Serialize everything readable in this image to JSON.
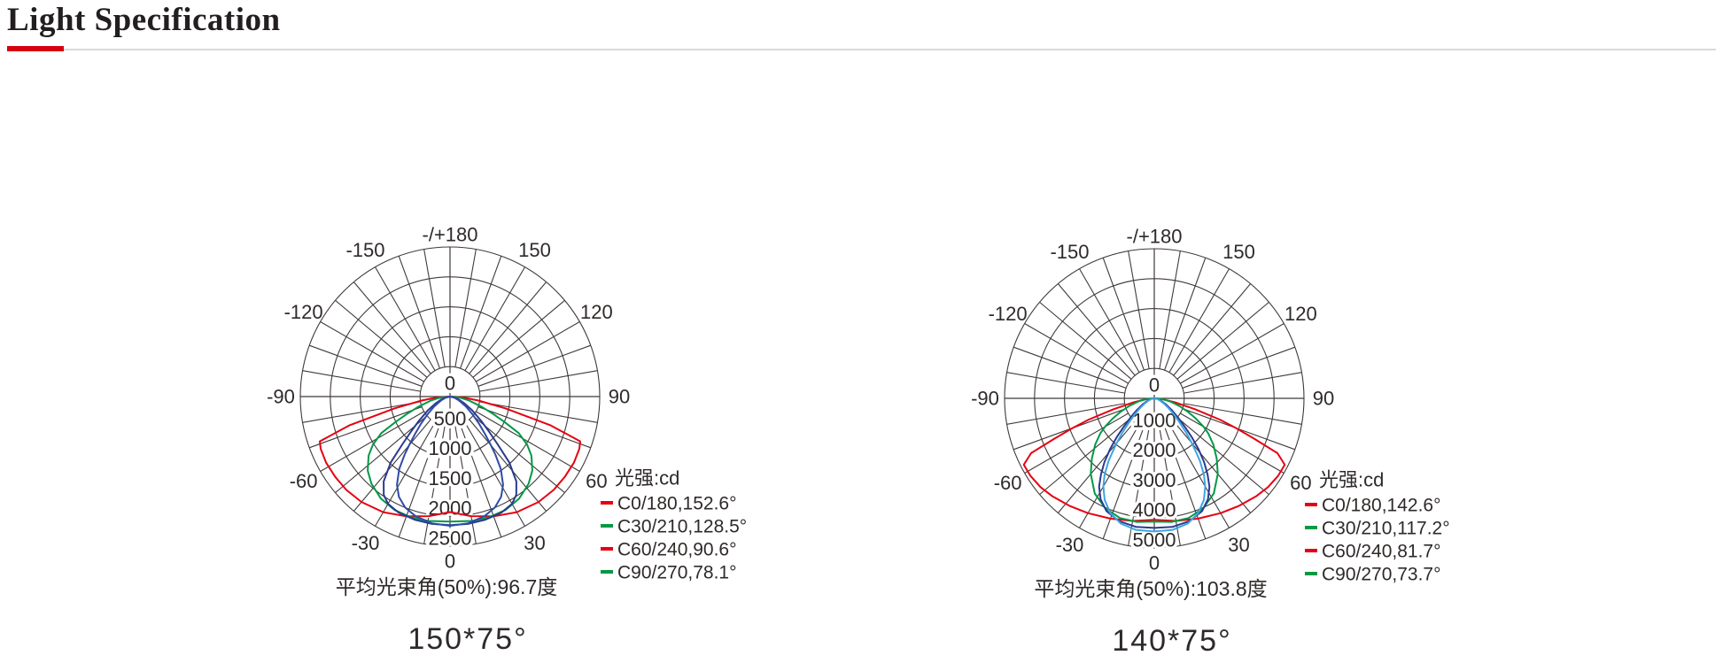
{
  "page": {
    "title": "Light Specification",
    "accent_color": "#d6000f",
    "divider_color": "#dadada",
    "text_color": "#2e2a29",
    "grid_color": "#3f3a39"
  },
  "chart_data": [
    {
      "type": "polar_photometric",
      "size_label": "150*75°",
      "caption": "平均光束角(50%):96.7度",
      "unit_label": "光强:cd",
      "r_max": 2500,
      "radial_ticks": [
        0,
        500,
        1000,
        1500,
        2000,
        2500
      ],
      "center_tick_label": "0",
      "bottom_angle_label": "0",
      "angle_labels": [
        {
          "angle": 180,
          "label": "-/+180"
        },
        {
          "angle": 150,
          "label": "150"
        },
        {
          "angle": -150,
          "label": "-150"
        },
        {
          "angle": 120,
          "label": "120"
        },
        {
          "angle": -120,
          "label": "-120"
        },
        {
          "angle": 90,
          "label": "90"
        },
        {
          "angle": -90,
          "label": "-90"
        },
        {
          "angle": 60,
          "label": "60"
        },
        {
          "angle": -60,
          "label": "-60"
        },
        {
          "angle": 30,
          "label": "30"
        },
        {
          "angle": -30,
          "label": "-30"
        }
      ],
      "series": [
        {
          "name": "C0/180,152.6°",
          "dash_color": "#e60012",
          "curve_color": "#e60012",
          "profile_cd_by_angle": [
            [
              0,
              1930
            ],
            [
              10,
              2030
            ],
            [
              20,
              2130
            ],
            [
              30,
              2230
            ],
            [
              40,
              2300
            ],
            [
              48,
              2330
            ],
            [
              55,
              2340
            ],
            [
              62,
              2345
            ],
            [
              68,
              2330
            ],
            [
              71,
              2300
            ],
            [
              74,
              1750
            ],
            [
              78,
              950
            ],
            [
              82,
              480
            ],
            [
              86,
              220
            ],
            [
              90,
              0
            ]
          ]
        },
        {
          "name": "C30/210,128.5°",
          "dash_color": "#009a44",
          "curve_color": "#009a44",
          "profile_cd_by_angle": [
            [
              0,
              2090
            ],
            [
              10,
              2110
            ],
            [
              18,
              2120
            ],
            [
              26,
              2110
            ],
            [
              34,
              2060
            ],
            [
              42,
              1960
            ],
            [
              48,
              1850
            ],
            [
              54,
              1680
            ],
            [
              58,
              1520
            ],
            [
              62,
              1300
            ],
            [
              65,
              1000
            ],
            [
              68,
              780
            ],
            [
              72,
              560
            ],
            [
              78,
              330
            ],
            [
              84,
              160
            ],
            [
              90,
              0
            ]
          ]
        },
        {
          "name": "C60/240,90.6°",
          "dash_color": "#e60012",
          "curve_color": "#2b3a8f",
          "profile_cd_by_angle": [
            [
              0,
              2150
            ],
            [
              8,
              2150
            ],
            [
              16,
              2140
            ],
            [
              24,
              2120
            ],
            [
              30,
              2070
            ],
            [
              34,
              1980
            ],
            [
              38,
              1800
            ],
            [
              42,
              1480
            ],
            [
              45,
              1120
            ],
            [
              48,
              880
            ],
            [
              52,
              660
            ],
            [
              58,
              440
            ],
            [
              65,
              260
            ],
            [
              72,
              150
            ],
            [
              80,
              70
            ],
            [
              90,
              0
            ]
          ]
        },
        {
          "name": "C90/270,78.1°",
          "dash_color": "#009a44",
          "curve_color": "#2f4ba6",
          "profile_cd_by_angle": [
            [
              0,
              2160
            ],
            [
              8,
              2140
            ],
            [
              16,
              2080
            ],
            [
              22,
              2000
            ],
            [
              27,
              1880
            ],
            [
              31,
              1720
            ],
            [
              35,
              1480
            ],
            [
              38,
              1230
            ],
            [
              40,
              1060
            ],
            [
              43,
              860
            ],
            [
              47,
              660
            ],
            [
              52,
              470
            ],
            [
              58,
              310
            ],
            [
              66,
              170
            ],
            [
              75,
              80
            ],
            [
              90,
              0
            ]
          ]
        }
      ]
    },
    {
      "type": "polar_photometric",
      "size_label": "140*75°",
      "caption": "平均光束角(50%):103.8度",
      "unit_label": "光强:cd",
      "r_max": 5000,
      "radial_ticks": [
        0,
        1000,
        2000,
        3000,
        4000,
        5000
      ],
      "center_tick_label": "0",
      "bottom_angle_label": "0",
      "angle_labels": [
        {
          "angle": 180,
          "label": "-/+180"
        },
        {
          "angle": 150,
          "label": "150"
        },
        {
          "angle": -150,
          "label": "-150"
        },
        {
          "angle": 120,
          "label": "120"
        },
        {
          "angle": -120,
          "label": "-120"
        },
        {
          "angle": 90,
          "label": "90"
        },
        {
          "angle": -90,
          "label": "-90"
        },
        {
          "angle": 60,
          "label": "60"
        },
        {
          "angle": -60,
          "label": "-60"
        },
        {
          "angle": 30,
          "label": "30"
        },
        {
          "angle": -30,
          "label": "-30"
        }
      ],
      "series": [
        {
          "name": "C0/180,142.6°",
          "dash_color": "#e60012",
          "curve_color": "#e60012",
          "profile_cd_by_angle": [
            [
              0,
              4060
            ],
            [
              10,
              4160
            ],
            [
              20,
              4280
            ],
            [
              30,
              4430
            ],
            [
              38,
              4570
            ],
            [
              46,
              4720
            ],
            [
              52,
              4820
            ],
            [
              58,
              4880
            ],
            [
              63,
              4890
            ],
            [
              66,
              4500
            ],
            [
              68,
              3600
            ],
            [
              70,
              2900
            ],
            [
              72,
              2300
            ],
            [
              75,
              1400
            ],
            [
              79,
              700
            ],
            [
              84,
              280
            ],
            [
              90,
              0
            ]
          ]
        },
        {
          "name": "C30/210,117.2°",
          "dash_color": "#009a44",
          "curve_color": "#009a44",
          "profile_cd_by_angle": [
            [
              0,
              4120
            ],
            [
              8,
              4170
            ],
            [
              16,
              4160
            ],
            [
              24,
              4020
            ],
            [
              32,
              3750
            ],
            [
              40,
              3300
            ],
            [
              46,
              2900
            ],
            [
              52,
              2500
            ],
            [
              57,
              2150
            ],
            [
              60,
              1900
            ],
            [
              64,
              1550
            ],
            [
              68,
              1230
            ],
            [
              73,
              880
            ],
            [
              79,
              530
            ],
            [
              85,
              250
            ],
            [
              90,
              0
            ]
          ]
        },
        {
          "name": "C60/240,81.7°",
          "dash_color": "#e60012",
          "curve_color": "#2b3a8f",
          "profile_cd_by_angle": [
            [
              0,
              4330
            ],
            [
              8,
              4340
            ],
            [
              16,
              4270
            ],
            [
              23,
              4090
            ],
            [
              28,
              3820
            ],
            [
              32,
              3480
            ],
            [
              35,
              3100
            ],
            [
              38,
              2700
            ],
            [
              41,
              2250
            ],
            [
              44,
              1800
            ],
            [
              47,
              1400
            ],
            [
              51,
              1020
            ],
            [
              56,
              700
            ],
            [
              62,
              450
            ],
            [
              70,
              250
            ],
            [
              78,
              120
            ],
            [
              90,
              0
            ]
          ]
        },
        {
          "name": "C90/270,73.7°",
          "dash_color": "#009a44",
          "curve_color": "#3fa5e0",
          "profile_cd_by_angle": [
            [
              0,
              4450
            ],
            [
              8,
              4440
            ],
            [
              15,
              4330
            ],
            [
              21,
              4100
            ],
            [
              26,
              3780
            ],
            [
              30,
              3400
            ],
            [
              33,
              3050
            ],
            [
              36,
              2600
            ],
            [
              38,
              2250
            ],
            [
              40,
              1950
            ],
            [
              43,
              1550
            ],
            [
              46,
              1200
            ],
            [
              50,
              880
            ],
            [
              55,
              600
            ],
            [
              61,
              380
            ],
            [
              68,
              220
            ],
            [
              76,
              100
            ],
            [
              90,
              0
            ]
          ]
        }
      ]
    }
  ]
}
